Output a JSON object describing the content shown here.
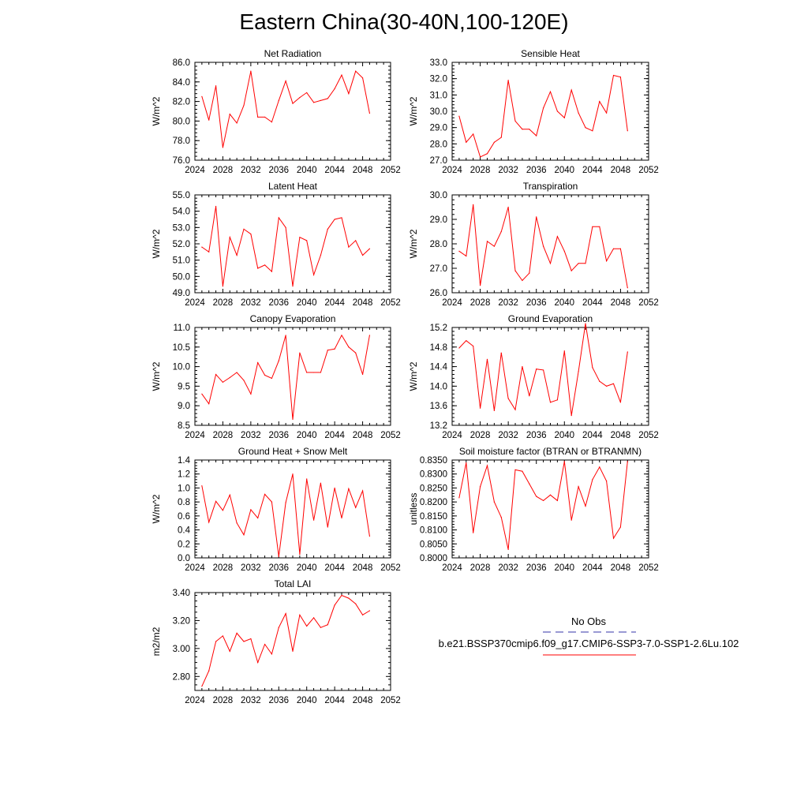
{
  "title": "Eastern China(30-40N,100-120E)",
  "colors": {
    "series": "#ff0000",
    "obs": "#3333aa",
    "axis": "#000000"
  },
  "legend": {
    "obs_label": "No Obs",
    "case_label": "b.e21.BSSP370cmip6.f09_g17.CMIP6-SSP3-7.0-SSP1-2.6Lu.102"
  },
  "chart_data": [
    {
      "type": "line",
      "title": "Net Radiation",
      "ylabel": "W/m^2",
      "xlim": [
        2024,
        2052
      ],
      "xticks": [
        2024,
        2028,
        2032,
        2036,
        2040,
        2044,
        2048,
        2052
      ],
      "ylim": [
        76,
        86
      ],
      "yticks": [
        "76.0",
        "78.0",
        "80.0",
        "82.0",
        "84.0",
        "86.0"
      ],
      "x": [
        2025,
        2026,
        2027,
        2028,
        2029,
        2030,
        2031,
        2032,
        2033,
        2034,
        2035,
        2036,
        2037,
        2038,
        2039,
        2040,
        2041,
        2042,
        2043,
        2044,
        2045,
        2046,
        2047,
        2048,
        2049
      ],
      "values": [
        82.5,
        80.1,
        83.6,
        77.3,
        80.7,
        79.8,
        81.6,
        85.1,
        80.4,
        80.4,
        79.9,
        82.1,
        84.1,
        81.8,
        82.4,
        82.9,
        81.9,
        82.1,
        82.3,
        83.3,
        84.7,
        82.8,
        85.1,
        84.4,
        80.8
      ]
    },
    {
      "type": "line",
      "title": "Sensible Heat",
      "ylabel": "W/m^2",
      "xlim": [
        2024,
        2052
      ],
      "xticks": [
        2024,
        2028,
        2032,
        2036,
        2040,
        2044,
        2048,
        2052
      ],
      "ylim": [
        27,
        33
      ],
      "yticks": [
        "27.0",
        "28.0",
        "29.0",
        "30.0",
        "31.0",
        "32.0",
        "33.0"
      ],
      "x": [
        2025,
        2026,
        2027,
        2028,
        2029,
        2030,
        2031,
        2032,
        2033,
        2034,
        2035,
        2036,
        2037,
        2038,
        2039,
        2040,
        2041,
        2042,
        2043,
        2044,
        2045,
        2046,
        2047,
        2048,
        2049
      ],
      "values": [
        29.7,
        28.1,
        28.6,
        27.2,
        27.4,
        28.1,
        28.4,
        31.9,
        29.4,
        28.9,
        28.9,
        28.5,
        30.2,
        31.2,
        30.0,
        29.6,
        31.3,
        29.9,
        29.0,
        28.8,
        30.6,
        29.9,
        32.2,
        32.1,
        28.8
      ]
    },
    {
      "type": "line",
      "title": "Latent Heat",
      "ylabel": "W/m^2",
      "xlim": [
        2024,
        2052
      ],
      "xticks": [
        2024,
        2028,
        2032,
        2036,
        2040,
        2044,
        2048,
        2052
      ],
      "ylim": [
        49,
        55
      ],
      "yticks": [
        "49.0",
        "50.0",
        "51.0",
        "52.0",
        "53.0",
        "54.0",
        "55.0"
      ],
      "x": [
        2025,
        2026,
        2027,
        2028,
        2029,
        2030,
        2031,
        2032,
        2033,
        2034,
        2035,
        2036,
        2037,
        2038,
        2039,
        2040,
        2041,
        2042,
        2043,
        2044,
        2045,
        2046,
        2047,
        2048,
        2049
      ],
      "values": [
        51.8,
        51.5,
        54.3,
        49.4,
        52.4,
        51.3,
        52.9,
        52.6,
        50.5,
        50.7,
        50.3,
        53.6,
        53.0,
        49.4,
        52.4,
        52.2,
        50.1,
        51.3,
        52.9,
        53.5,
        53.6,
        51.8,
        52.2,
        51.3,
        51.7
      ]
    },
    {
      "type": "line",
      "title": "Transpiration",
      "ylabel": "W/m^2",
      "xlim": [
        2024,
        2052
      ],
      "xticks": [
        2024,
        2028,
        2032,
        2036,
        2040,
        2044,
        2048,
        2052
      ],
      "ylim": [
        26,
        30
      ],
      "yticks": [
        "26.0",
        "27.0",
        "28.0",
        "29.0",
        "30.0"
      ],
      "x": [
        2025,
        2026,
        2027,
        2028,
        2029,
        2030,
        2031,
        2032,
        2033,
        2034,
        2035,
        2036,
        2037,
        2038,
        2039,
        2040,
        2041,
        2042,
        2043,
        2044,
        2045,
        2046,
        2047,
        2048,
        2049
      ],
      "values": [
        27.7,
        27.5,
        29.6,
        26.3,
        28.1,
        27.9,
        28.5,
        29.5,
        26.9,
        26.5,
        26.8,
        29.1,
        27.9,
        27.2,
        28.3,
        27.7,
        26.9,
        27.2,
        27.2,
        28.7,
        28.7,
        27.3,
        27.8,
        27.8,
        26.2
      ]
    },
    {
      "type": "line",
      "title": "Canopy Evaporation",
      "ylabel": "W/m^2",
      "xlim": [
        2024,
        2052
      ],
      "xticks": [
        2024,
        2028,
        2032,
        2036,
        2040,
        2044,
        2048,
        2052
      ],
      "ylim": [
        8.5,
        11.0
      ],
      "yticks": [
        "8.5",
        "9.0",
        "9.5",
        "10.0",
        "10.5",
        "11.0"
      ],
      "x": [
        2025,
        2026,
        2027,
        2028,
        2029,
        2030,
        2031,
        2032,
        2033,
        2034,
        2035,
        2036,
        2037,
        2038,
        2039,
        2040,
        2041,
        2042,
        2043,
        2044,
        2045,
        2046,
        2047,
        2048,
        2049
      ],
      "values": [
        9.3,
        9.05,
        9.8,
        9.6,
        9.72,
        9.85,
        9.65,
        9.3,
        10.1,
        9.78,
        9.7,
        10.15,
        10.8,
        8.65,
        10.35,
        9.85,
        9.85,
        9.85,
        10.42,
        10.45,
        10.8,
        10.5,
        10.35,
        9.8,
        10.8
      ]
    },
    {
      "type": "line",
      "title": "Ground Evaporation",
      "ylabel": "W/m^2",
      "xlim": [
        2024,
        2052
      ],
      "xticks": [
        2024,
        2028,
        2032,
        2036,
        2040,
        2044,
        2048,
        2052
      ],
      "ylim": [
        13.2,
        15.2
      ],
      "yticks": [
        "13.2",
        "13.6",
        "14.0",
        "14.4",
        "14.8",
        "15.2"
      ],
      "x": [
        2025,
        2026,
        2027,
        2028,
        2029,
        2030,
        2031,
        2032,
        2033,
        2034,
        2035,
        2036,
        2037,
        2038,
        2039,
        2040,
        2041,
        2042,
        2043,
        2044,
        2045,
        2046,
        2047,
        2048,
        2049
      ],
      "values": [
        14.78,
        14.93,
        14.82,
        13.55,
        14.55,
        13.5,
        14.68,
        13.75,
        13.52,
        14.4,
        13.8,
        14.35,
        14.33,
        13.67,
        13.72,
        14.72,
        13.4,
        14.3,
        15.28,
        14.38,
        14.1,
        14.0,
        14.05,
        13.67,
        14.7
      ]
    },
    {
      "type": "line",
      "title": "Ground Heat + Snow Melt",
      "ylabel": "W/m^2",
      "xlim": [
        2024,
        2052
      ],
      "xticks": [
        2024,
        2028,
        2032,
        2036,
        2040,
        2044,
        2048,
        2052
      ],
      "ylim": [
        0.0,
        1.4
      ],
      "yticks": [
        "0.0",
        "0.2",
        "0.4",
        "0.6",
        "0.8",
        "1.0",
        "1.2",
        "1.4"
      ],
      "x": [
        2025,
        2026,
        2027,
        2028,
        2029,
        2030,
        2031,
        2032,
        2033,
        2034,
        2035,
        2036,
        2037,
        2038,
        2039,
        2040,
        2041,
        2042,
        2043,
        2044,
        2045,
        2046,
        2047,
        2048,
        2049
      ],
      "values": [
        1.03,
        0.51,
        0.81,
        0.68,
        0.9,
        0.5,
        0.33,
        0.69,
        0.57,
        0.91,
        0.8,
        0.02,
        0.79,
        1.2,
        0.05,
        1.13,
        0.54,
        1.07,
        0.44,
        1.0,
        0.57,
        0.99,
        0.72,
        0.96,
        0.31
      ]
    },
    {
      "type": "line",
      "title": "Soil moisture factor (BTRAN or BTRANMN)",
      "ylabel": "unitless",
      "xlim": [
        2024,
        2052
      ],
      "xticks": [
        2024,
        2028,
        2032,
        2036,
        2040,
        2044,
        2048,
        2052
      ],
      "ylim": [
        0.8,
        0.835
      ],
      "yticks": [
        "0.8000",
        "0.8050",
        "0.8100",
        "0.8150",
        "0.8200",
        "0.8250",
        "0.8300",
        "0.8350"
      ],
      "x": [
        2025,
        2026,
        2027,
        2028,
        2029,
        2030,
        2031,
        2032,
        2033,
        2034,
        2035,
        2036,
        2037,
        2038,
        2039,
        2040,
        2041,
        2042,
        2043,
        2044,
        2045,
        2046,
        2047,
        2048,
        2049
      ],
      "values": [
        0.8215,
        0.834,
        0.809,
        0.8255,
        0.833,
        0.82,
        0.8145,
        0.803,
        0.8315,
        0.831,
        0.8265,
        0.822,
        0.8205,
        0.8225,
        0.8205,
        0.8345,
        0.8135,
        0.8255,
        0.8185,
        0.828,
        0.8325,
        0.8275,
        0.807,
        0.811,
        0.8345
      ]
    },
    {
      "type": "line",
      "title": "Total LAI",
      "ylabel": "m2/m2",
      "xlim": [
        2024,
        2052
      ],
      "xticks": [
        2024,
        2028,
        2032,
        2036,
        2040,
        2044,
        2048,
        2052
      ],
      "ylim": [
        2.7,
        3.4
      ],
      "yticks": [
        "2.80",
        "3.00",
        "3.20",
        "3.40"
      ],
      "x": [
        2025,
        2026,
        2027,
        2028,
        2029,
        2030,
        2031,
        2032,
        2033,
        2034,
        2035,
        2036,
        2037,
        2038,
        2039,
        2040,
        2041,
        2042,
        2043,
        2044,
        2045,
        2046,
        2047,
        2048,
        2049
      ],
      "values": [
        2.73,
        2.84,
        3.05,
        3.09,
        2.98,
        3.11,
        3.05,
        3.07,
        2.9,
        3.03,
        2.96,
        3.15,
        3.25,
        2.98,
        3.24,
        3.16,
        3.22,
        3.15,
        3.17,
        3.31,
        3.38,
        3.36,
        3.32,
        3.24,
        3.27
      ]
    }
  ]
}
